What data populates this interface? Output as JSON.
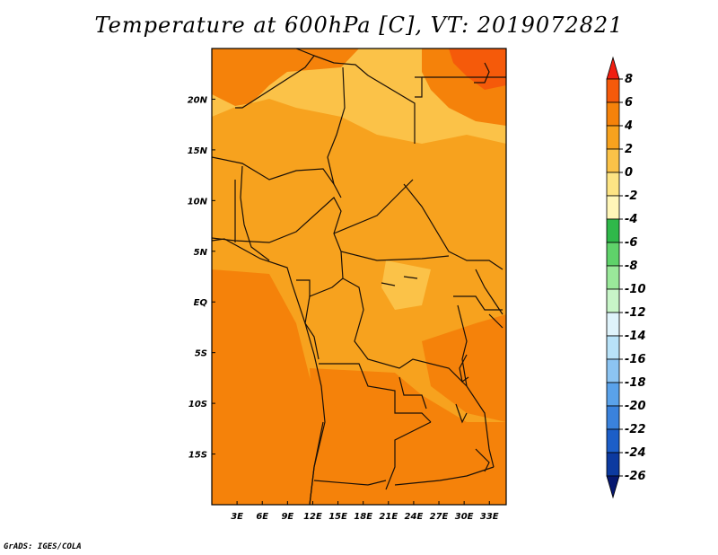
{
  "title": "Temperature at 600hPa [C], VT: 2019072821",
  "credit": "GrADS: IGES/COLA",
  "map": {
    "lon_range": [
      0,
      35
    ],
    "lat_range": [
      -20,
      25
    ],
    "x_ticks": [
      {
        "value": 3,
        "label": "3E"
      },
      {
        "value": 6,
        "label": "6E"
      },
      {
        "value": 9,
        "label": "9E"
      },
      {
        "value": 12,
        "label": "12E"
      },
      {
        "value": 15,
        "label": "15E"
      },
      {
        "value": 18,
        "label": "18E"
      },
      {
        "value": 21,
        "label": "21E"
      },
      {
        "value": 24,
        "label": "24E"
      },
      {
        "value": 27,
        "label": "27E"
      },
      {
        "value": 30,
        "label": "30E"
      },
      {
        "value": 33,
        "label": "33E"
      }
    ],
    "y_ticks": [
      {
        "value": 20,
        "label": "20N"
      },
      {
        "value": 15,
        "label": "15N"
      },
      {
        "value": 10,
        "label": "10N"
      },
      {
        "value": 5,
        "label": "5N"
      },
      {
        "value": 0,
        "label": "EQ"
      },
      {
        "value": -5,
        "label": "5S"
      },
      {
        "value": -10,
        "label": "10S"
      },
      {
        "value": -15,
        "label": "15S"
      }
    ]
  },
  "colorbar": {
    "labels": [
      "8",
      "6",
      "4",
      "2",
      "0",
      "-2",
      "-4",
      "-6",
      "-8",
      "-10",
      "-12",
      "-14",
      "-16",
      "-18",
      "-20",
      "-22",
      "-24",
      "-26"
    ],
    "colors": [
      "#f01e10",
      "#f55a0a",
      "#f5820a",
      "#f7a21e",
      "#fbc248",
      "#fde484",
      "#fff6b8",
      "#2fb84a",
      "#5fd26a",
      "#9ae89a",
      "#c8f5c8",
      "#dff3fb",
      "#b8e2f8",
      "#8cc4f2",
      "#5aa2ea",
      "#3a82dc",
      "#1c5ec8",
      "#0c3aa0",
      "#061870"
    ]
  },
  "palette": {
    "level_2_4": "#f7a21e",
    "level_0_2": "#fbc248",
    "level_4_6": "#f5820a",
    "level_6_8": "#f55a0a",
    "boundary": "#1a1008"
  }
}
